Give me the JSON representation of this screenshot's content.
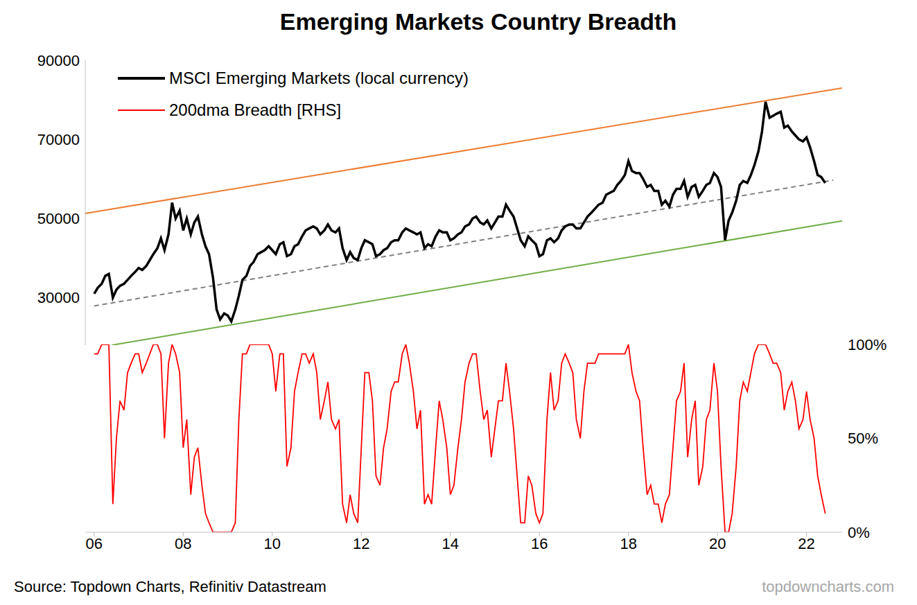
{
  "chart_data": {
    "type": "line",
    "title": "Emerging Markets Country Breadth",
    "x": [
      2006,
      2006.08,
      2006.17,
      2006.25,
      2006.33,
      2006.42,
      2006.5,
      2006.58,
      2006.67,
      2006.75,
      2006.83,
      2006.92,
      2007,
      2007.08,
      2007.17,
      2007.25,
      2007.33,
      2007.42,
      2007.5,
      2007.58,
      2007.67,
      2007.75,
      2007.83,
      2007.92,
      2008,
      2008.08,
      2008.17,
      2008.25,
      2008.33,
      2008.42,
      2008.5,
      2008.58,
      2008.67,
      2008.75,
      2008.83,
      2008.92,
      2009,
      2009.08,
      2009.17,
      2009.25,
      2009.33,
      2009.42,
      2009.5,
      2009.58,
      2009.67,
      2009.75,
      2009.83,
      2009.92,
      2010,
      2010.08,
      2010.17,
      2010.25,
      2010.33,
      2010.42,
      2010.5,
      2010.58,
      2010.67,
      2010.75,
      2010.83,
      2010.92,
      2011,
      2011.08,
      2011.17,
      2011.25,
      2011.33,
      2011.42,
      2011.5,
      2011.58,
      2011.67,
      2011.75,
      2011.83,
      2011.92,
      2012,
      2012.08,
      2012.17,
      2012.25,
      2012.33,
      2012.42,
      2012.5,
      2012.58,
      2012.67,
      2012.75,
      2012.83,
      2012.92,
      2013,
      2013.08,
      2013.17,
      2013.25,
      2013.33,
      2013.42,
      2013.5,
      2013.58,
      2013.67,
      2013.75,
      2013.83,
      2013.92,
      2014,
      2014.08,
      2014.17,
      2014.25,
      2014.33,
      2014.42,
      2014.5,
      2014.58,
      2014.67,
      2014.75,
      2014.83,
      2014.92,
      2015,
      2015.08,
      2015.17,
      2015.25,
      2015.33,
      2015.42,
      2015.5,
      2015.58,
      2015.67,
      2015.75,
      2015.83,
      2015.92,
      2016,
      2016.08,
      2016.17,
      2016.25,
      2016.33,
      2016.42,
      2016.5,
      2016.58,
      2016.67,
      2016.75,
      2016.83,
      2016.92,
      2017,
      2017.08,
      2017.17,
      2017.25,
      2017.33,
      2017.42,
      2017.5,
      2017.58,
      2017.67,
      2017.75,
      2017.83,
      2017.92,
      2018,
      2018.08,
      2018.17,
      2018.25,
      2018.33,
      2018.42,
      2018.5,
      2018.58,
      2018.67,
      2018.75,
      2018.83,
      2018.92,
      2019,
      2019.08,
      2019.17,
      2019.25,
      2019.33,
      2019.42,
      2019.5,
      2019.58,
      2019.67,
      2019.75,
      2019.83,
      2019.92,
      2020,
      2020.08,
      2020.17,
      2020.25,
      2020.33,
      2020.42,
      2020.5,
      2020.58,
      2020.67,
      2020.75,
      2020.83,
      2020.92,
      2021,
      2021.08,
      2021.17,
      2021.25,
      2021.33,
      2021.42,
      2021.5,
      2021.58,
      2021.67,
      2021.75,
      2021.83,
      2021.92,
      2022,
      2022.08,
      2022.17,
      2022.25,
      2022.33,
      2022.42
    ],
    "xlim": [
      2005.8,
      2022.8
    ],
    "xticks": [
      {
        "value": 2006,
        "label": "06"
      },
      {
        "value": 2008,
        "label": "08"
      },
      {
        "value": 2010,
        "label": "10"
      },
      {
        "value": 2012,
        "label": "12"
      },
      {
        "value": 2014,
        "label": "14"
      },
      {
        "value": 2016,
        "label": "16"
      },
      {
        "value": 2018,
        "label": "18"
      },
      {
        "value": 2020,
        "label": "20"
      },
      {
        "value": 2022,
        "label": "22"
      }
    ],
    "ylim": [
      18000,
      90000
    ],
    "yticks": [
      30000,
      50000,
      70000,
      90000
    ],
    "y2lim": [
      0,
      100
    ],
    "y2ticks": [
      {
        "value": 0,
        "label": "0%"
      },
      {
        "value": 50,
        "label": "50%"
      },
      {
        "value": 100,
        "label": "100%"
      }
    ],
    "legend": "upper left",
    "series": [
      {
        "name": "MSCI Emerging Markets (local currency)",
        "color": "#000000",
        "values": [
          31000,
          32500,
          33500,
          35500,
          36000,
          30000,
          32000,
          33000,
          33500,
          34500,
          35500,
          36500,
          37500,
          37000,
          38000,
          39500,
          41000,
          42500,
          45000,
          42000,
          46000,
          54000,
          50000,
          52000,
          47000,
          50000,
          46000,
          49000,
          50500,
          46000,
          43000,
          41000,
          35000,
          27000,
          24500,
          26000,
          25500,
          24000,
          27000,
          30500,
          34500,
          35500,
          38000,
          39000,
          41000,
          41500,
          42000,
          43000,
          42000,
          41000,
          43500,
          44000,
          40500,
          41000,
          43000,
          43500,
          45500,
          47000,
          47500,
          48000,
          47500,
          46000,
          47000,
          48500,
          47000,
          46500,
          47500,
          42500,
          39500,
          41500,
          40000,
          39500,
          42500,
          44500,
          44000,
          43500,
          40500,
          41000,
          42000,
          42500,
          44000,
          44500,
          44500,
          46500,
          47500,
          47000,
          46500,
          46000,
          46500,
          42500,
          43500,
          43000,
          45500,
          47000,
          46500,
          46500,
          44500,
          45000,
          46000,
          46500,
          48000,
          48500,
          50000,
          50500,
          49000,
          48500,
          49500,
          47500,
          49000,
          50500,
          50500,
          53500,
          52000,
          50500,
          47500,
          44500,
          43000,
          45500,
          44500,
          43500,
          40500,
          41000,
          44500,
          45000,
          44000,
          45000,
          47000,
          48000,
          48500,
          48500,
          47500,
          47500,
          49000,
          50500,
          51500,
          52500,
          53500,
          54000,
          56000,
          56500,
          57000,
          58500,
          59500,
          61000,
          64500,
          62000,
          61500,
          61500,
          60000,
          58000,
          58500,
          57000,
          57000,
          53500,
          54500,
          53000,
          56000,
          57500,
          57500,
          59500,
          55500,
          58000,
          58500,
          55500,
          57000,
          58500,
          59000,
          61500,
          60500,
          58000,
          44500,
          49500,
          51500,
          54500,
          58500,
          59500,
          59000,
          61000,
          63500,
          67000,
          72000,
          79500,
          75500,
          76000,
          76500,
          77000,
          73000,
          73500,
          72000,
          71000,
          70000,
          69500,
          70500,
          68000,
          64500,
          61000,
          60500,
          59000
        ]
      },
      {
        "name": "200dma Breadth [RHS]",
        "color": "#ff0000",
        "axis": "y2",
        "values": [
          95,
          95,
          100,
          100,
          100,
          15,
          50,
          70,
          65,
          85,
          90,
          95,
          95,
          85,
          90,
          95,
          100,
          100,
          95,
          50,
          90,
          100,
          95,
          85,
          45,
          60,
          20,
          40,
          45,
          25,
          10,
          5,
          0,
          0,
          0,
          0,
          0,
          0,
          5,
          60,
          95,
          95,
          100,
          100,
          100,
          100,
          100,
          100,
          95,
          75,
          95,
          95,
          35,
          45,
          75,
          85,
          95,
          95,
          90,
          95,
          85,
          60,
          70,
          80,
          60,
          55,
          60,
          15,
          5,
          20,
          10,
          5,
          45,
          85,
          85,
          70,
          30,
          25,
          45,
          55,
          75,
          80,
          80,
          95,
          100,
          90,
          75,
          55,
          65,
          15,
          20,
          15,
          45,
          70,
          60,
          45,
          20,
          25,
          45,
          60,
          80,
          90,
          95,
          95,
          75,
          60,
          65,
          40,
          55,
          70,
          70,
          90,
          75,
          55,
          30,
          5,
          5,
          30,
          25,
          10,
          5,
          10,
          60,
          85,
          65,
          70,
          90,
          95,
          90,
          85,
          60,
          50,
          75,
          90,
          90,
          90,
          95,
          95,
          95,
          95,
          95,
          95,
          95,
          95,
          100,
          85,
          75,
          70,
          45,
          20,
          25,
          15,
          15,
          5,
          15,
          20,
          45,
          70,
          75,
          90,
          40,
          60,
          70,
          25,
          35,
          60,
          65,
          90,
          75,
          35,
          0,
          0,
          10,
          35,
          70,
          80,
          75,
          85,
          95,
          100,
          100,
          100,
          95,
          90,
          90,
          85,
          65,
          75,
          80,
          70,
          55,
          60,
          75,
          60,
          50,
          30,
          20,
          10
        ]
      }
    ],
    "trend_lines": [
      {
        "color": "#ed7d31",
        "line_style": "solid",
        "x": [
          2005.8,
          2022.8
        ],
        "values": [
          51300,
          83000
        ]
      },
      {
        "color": "#808080",
        "line_style": "dashed",
        "x": [
          2006,
          2022.6
        ],
        "values": [
          27900,
          59700
        ]
      },
      {
        "color": "#70ad47",
        "line_style": "solid",
        "x": [
          2006.4,
          2022.8
        ],
        "values": [
          18000,
          49400
        ]
      }
    ],
    "source": "Source: Topdown Charts, Refinitiv Datastream",
    "credit": "topdowncharts.com"
  }
}
